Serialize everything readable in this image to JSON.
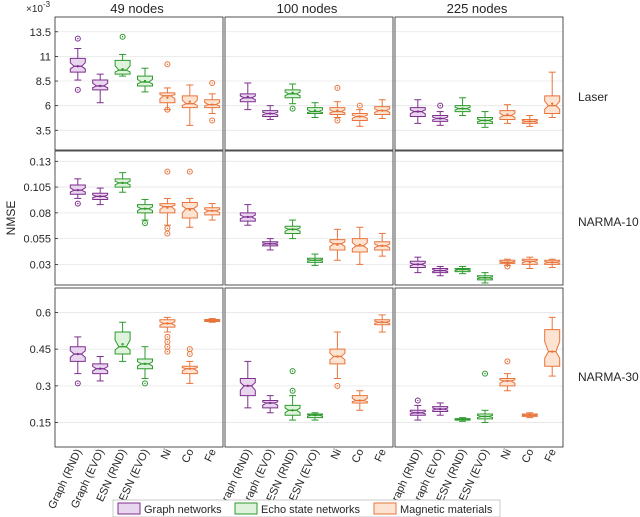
{
  "figure": {
    "ylabel": "NMSE",
    "exponent_base": "×10",
    "exponent_power": "-3"
  },
  "columns": [
    "49 nodes",
    "100 nodes",
    "225 nodes"
  ],
  "categories": [
    "Graph (RND)",
    "Graph (EVO)",
    "ESN (RND)",
    "ESN (EVO)",
    "Ni",
    "Co",
    "Fe"
  ],
  "category_groups": [
    "graph",
    "graph",
    "esn",
    "esn",
    "magnetic",
    "magnetic",
    "magnetic"
  ],
  "groups": {
    "graph": {
      "name": "Graph networks",
      "color": "#7e2f8e",
      "fill": "#e8d5ee"
    },
    "esn": {
      "name": "Echo state networks",
      "color": "#2e9a2e",
      "fill": "#dff3dc"
    },
    "magnetic": {
      "name": "Magnetic materials",
      "color": "#e8743b",
      "fill": "#fde3d2"
    }
  },
  "chart_data": [
    {
      "type": "boxplot",
      "task": "Laser",
      "ylim": [
        1.5,
        15
      ],
      "yticks": [
        3.5,
        6,
        8.5,
        11,
        13.5
      ],
      "ytick_labels": [
        "3.5",
        "6",
        "8.5",
        "11",
        "13.5"
      ],
      "columns": [
        [
          {
            "min": 8.6,
            "q1": 9.4,
            "median": 10.0,
            "q3": 10.8,
            "max": 11.8,
            "mean": 10.0,
            "outliers": [
              12.8,
              7.6
            ]
          },
          {
            "min": 6.3,
            "q1": 7.6,
            "median": 8.0,
            "q3": 8.6,
            "max": 9.2,
            "mean": 8.0,
            "outliers": []
          },
          {
            "min": 9.0,
            "q1": 9.2,
            "median": 9.6,
            "q3": 10.6,
            "max": 11.2,
            "mean": 9.7,
            "outliers": [
              13.0
            ]
          },
          {
            "min": 7.4,
            "q1": 8.0,
            "median": 8.4,
            "q3": 9.0,
            "max": 9.8,
            "mean": 8.5,
            "outliers": []
          },
          {
            "min": 5.6,
            "q1": 6.3,
            "median": 7.0,
            "q3": 7.3,
            "max": 7.8,
            "mean": 6.8,
            "outliers": [
              10.2,
              5.6
            ]
          },
          {
            "min": 4.0,
            "q1": 5.8,
            "median": 6.2,
            "q3": 7.0,
            "max": 8.1,
            "mean": 6.4,
            "outliers": []
          },
          {
            "min": 5.2,
            "q1": 5.8,
            "median": 6.1,
            "q3": 6.6,
            "max": 7.2,
            "mean": 6.1,
            "outliers": [
              8.3,
              4.5
            ]
          }
        ],
        [
          {
            "min": 5.6,
            "q1": 6.4,
            "median": 6.8,
            "q3": 7.2,
            "max": 8.3,
            "mean": 6.9,
            "outliers": []
          },
          {
            "min": 4.6,
            "q1": 4.9,
            "median": 5.2,
            "q3": 5.5,
            "max": 6.0,
            "mean": 5.2,
            "outliers": []
          },
          {
            "min": 6.2,
            "q1": 6.8,
            "median": 7.2,
            "q3": 7.6,
            "max": 8.2,
            "mean": 7.3,
            "outliers": [
              5.7
            ]
          },
          {
            "min": 4.8,
            "q1": 5.2,
            "median": 5.4,
            "q3": 5.8,
            "max": 6.3,
            "mean": 5.5,
            "outliers": []
          },
          {
            "min": 4.8,
            "q1": 5.1,
            "median": 5.4,
            "q3": 5.8,
            "max": 6.4,
            "mean": 5.5,
            "outliers": [
              7.8,
              4.5
            ]
          },
          {
            "min": 3.9,
            "q1": 4.5,
            "median": 4.9,
            "q3": 5.2,
            "max": 5.6,
            "mean": 4.9,
            "outliers": [
              6.0
            ]
          },
          {
            "min": 4.7,
            "q1": 5.1,
            "median": 5.5,
            "q3": 5.9,
            "max": 6.6,
            "mean": 5.5,
            "outliers": []
          }
        ],
        [
          {
            "min": 4.2,
            "q1": 4.9,
            "median": 5.4,
            "q3": 5.8,
            "max": 6.6,
            "mean": 5.4,
            "outliers": []
          },
          {
            "min": 4.0,
            "q1": 4.4,
            "median": 4.7,
            "q3": 5.0,
            "max": 5.4,
            "mean": 4.7,
            "outliers": [
              6.0
            ]
          },
          {
            "min": 5.0,
            "q1": 5.4,
            "median": 5.7,
            "q3": 6.0,
            "max": 6.8,
            "mean": 5.7,
            "outliers": []
          },
          {
            "min": 3.8,
            "q1": 4.2,
            "median": 4.5,
            "q3": 4.8,
            "max": 5.4,
            "mean": 4.5,
            "outliers": []
          },
          {
            "min": 4.2,
            "q1": 4.6,
            "median": 5.0,
            "q3": 5.5,
            "max": 6.1,
            "mean": 5.1,
            "outliers": []
          },
          {
            "min": 3.9,
            "q1": 4.2,
            "median": 4.4,
            "q3": 4.6,
            "max": 5.0,
            "mean": 4.4,
            "outliers": []
          },
          {
            "min": 4.8,
            "q1": 5.2,
            "median": 6.0,
            "q3": 7.0,
            "max": 9.4,
            "mean": 6.2,
            "outliers": []
          }
        ]
      ]
    },
    {
      "type": "boxplot",
      "task": "NARMA-10",
      "ylim": [
        0.01,
        0.14
      ],
      "yticks": [
        0.03,
        0.055,
        0.08,
        0.105,
        0.13
      ],
      "ytick_labels": [
        "0.03",
        "0.055",
        "0.08",
        "0.105",
        "0.13"
      ],
      "columns": [
        [
          {
            "min": 0.094,
            "q1": 0.098,
            "median": 0.102,
            "q3": 0.107,
            "max": 0.113,
            "mean": 0.102,
            "outliers": [
              0.089
            ]
          },
          {
            "min": 0.088,
            "q1": 0.093,
            "median": 0.096,
            "q3": 0.099,
            "max": 0.104,
            "mean": 0.096,
            "outliers": []
          },
          {
            "min": 0.1,
            "q1": 0.105,
            "median": 0.109,
            "q3": 0.113,
            "max": 0.119,
            "mean": 0.109,
            "outliers": []
          },
          {
            "min": 0.073,
            "q1": 0.08,
            "median": 0.084,
            "q3": 0.088,
            "max": 0.093,
            "mean": 0.084,
            "outliers": [
              0.07
            ]
          },
          {
            "min": 0.068,
            "q1": 0.08,
            "median": 0.086,
            "q3": 0.089,
            "max": 0.094,
            "mean": 0.085,
            "outliers": [
              0.12,
              0.065,
              0.06
            ]
          },
          {
            "min": 0.066,
            "q1": 0.075,
            "median": 0.084,
            "q3": 0.09,
            "max": 0.094,
            "mean": 0.083,
            "outliers": [
              0.12
            ]
          },
          {
            "min": 0.073,
            "q1": 0.078,
            "median": 0.082,
            "q3": 0.085,
            "max": 0.089,
            "mean": 0.082,
            "outliers": []
          }
        ],
        [
          {
            "min": 0.068,
            "q1": 0.072,
            "median": 0.076,
            "q3": 0.08,
            "max": 0.088,
            "mean": 0.076,
            "outliers": []
          },
          {
            "min": 0.044,
            "q1": 0.048,
            "median": 0.05,
            "q3": 0.052,
            "max": 0.055,
            "mean": 0.05,
            "outliers": []
          },
          {
            "min": 0.055,
            "q1": 0.06,
            "median": 0.064,
            "q3": 0.067,
            "max": 0.073,
            "mean": 0.064,
            "outliers": []
          },
          {
            "min": 0.029,
            "q1": 0.032,
            "median": 0.034,
            "q3": 0.036,
            "max": 0.04,
            "mean": 0.034,
            "outliers": []
          },
          {
            "min": 0.034,
            "q1": 0.044,
            "median": 0.05,
            "q3": 0.054,
            "max": 0.064,
            "mean": 0.049,
            "outliers": []
          },
          {
            "min": 0.03,
            "q1": 0.042,
            "median": 0.048,
            "q3": 0.055,
            "max": 0.066,
            "mean": 0.049,
            "outliers": []
          },
          {
            "min": 0.038,
            "q1": 0.044,
            "median": 0.048,
            "q3": 0.052,
            "max": 0.06,
            "mean": 0.048,
            "outliers": []
          }
        ],
        [
          {
            "min": 0.022,
            "q1": 0.027,
            "median": 0.03,
            "q3": 0.033,
            "max": 0.037,
            "mean": 0.03,
            "outliers": []
          },
          {
            "min": 0.019,
            "q1": 0.022,
            "median": 0.024,
            "q3": 0.026,
            "max": 0.028,
            "mean": 0.024,
            "outliers": []
          },
          {
            "min": 0.021,
            "q1": 0.023,
            "median": 0.025,
            "q3": 0.026,
            "max": 0.028,
            "mean": 0.025,
            "outliers": []
          },
          {
            "min": 0.012,
            "q1": 0.015,
            "median": 0.017,
            "q3": 0.019,
            "max": 0.022,
            "mean": 0.017,
            "outliers": []
          },
          {
            "min": 0.029,
            "q1": 0.031,
            "median": 0.032,
            "q3": 0.034,
            "max": 0.035,
            "mean": 0.032,
            "outliers": [
              0.028
            ]
          },
          {
            "min": 0.026,
            "q1": 0.03,
            "median": 0.033,
            "q3": 0.035,
            "max": 0.037,
            "mean": 0.032,
            "outliers": []
          },
          {
            "min": 0.027,
            "q1": 0.03,
            "median": 0.032,
            "q3": 0.034,
            "max": 0.035,
            "mean": 0.032,
            "outliers": []
          }
        ]
      ]
    },
    {
      "type": "boxplot",
      "task": "NARMA-30",
      "ylim": [
        0.05,
        0.7
      ],
      "yticks": [
        0.15,
        0.3,
        0.45,
        0.6
      ],
      "ytick_labels": [
        "0.15",
        "0.3",
        "0.45",
        "0.6"
      ],
      "columns": [
        [
          {
            "min": 0.35,
            "q1": 0.4,
            "median": 0.43,
            "q3": 0.46,
            "max": 0.5,
            "mean": 0.43,
            "outliers": [
              0.31
            ]
          },
          {
            "min": 0.32,
            "q1": 0.35,
            "median": 0.37,
            "q3": 0.39,
            "max": 0.42,
            "mean": 0.37,
            "outliers": []
          },
          {
            "min": 0.4,
            "q1": 0.43,
            "median": 0.46,
            "q3": 0.52,
            "max": 0.56,
            "mean": 0.47,
            "outliers": []
          },
          {
            "min": 0.33,
            "q1": 0.37,
            "median": 0.39,
            "q3": 0.41,
            "max": 0.46,
            "mean": 0.39,
            "outliers": [
              0.31
            ]
          },
          {
            "min": 0.52,
            "q1": 0.54,
            "median": 0.555,
            "q3": 0.57,
            "max": 0.58,
            "mean": 0.555,
            "outliers": [
              0.5,
              0.48,
              0.46,
              0.44
            ]
          },
          {
            "min": 0.31,
            "q1": 0.35,
            "median": 0.37,
            "q3": 0.38,
            "max": 0.4,
            "mean": 0.37,
            "outliers": [
              0.45,
              0.43
            ]
          },
          {
            "min": 0.56,
            "q1": 0.563,
            "median": 0.567,
            "q3": 0.571,
            "max": 0.575,
            "mean": 0.567,
            "outliers": []
          }
        ],
        [
          {
            "min": 0.21,
            "q1": 0.26,
            "median": 0.3,
            "q3": 0.33,
            "max": 0.4,
            "mean": 0.3,
            "outliers": []
          },
          {
            "min": 0.19,
            "q1": 0.21,
            "median": 0.23,
            "q3": 0.24,
            "max": 0.26,
            "mean": 0.23,
            "outliers": []
          },
          {
            "min": 0.16,
            "q1": 0.18,
            "median": 0.2,
            "q3": 0.22,
            "max": 0.26,
            "mean": 0.2,
            "outliers": [
              0.36,
              0.28
            ]
          },
          {
            "min": 0.16,
            "q1": 0.17,
            "median": 0.18,
            "q3": 0.185,
            "max": 0.19,
            "mean": 0.18,
            "outliers": []
          },
          {
            "min": 0.33,
            "q1": 0.39,
            "median": 0.42,
            "q3": 0.45,
            "max": 0.52,
            "mean": 0.42,
            "outliers": [
              0.3
            ]
          },
          {
            "min": 0.2,
            "q1": 0.23,
            "median": 0.24,
            "q3": 0.26,
            "max": 0.28,
            "mean": 0.24,
            "outliers": []
          },
          {
            "min": 0.52,
            "q1": 0.55,
            "median": 0.56,
            "q3": 0.57,
            "max": 0.59,
            "mean": 0.56,
            "outliers": []
          }
        ],
        [
          {
            "min": 0.16,
            "q1": 0.18,
            "median": 0.19,
            "q3": 0.2,
            "max": 0.22,
            "mean": 0.19,
            "outliers": [
              0.24
            ]
          },
          {
            "min": 0.18,
            "q1": 0.195,
            "median": 0.205,
            "q3": 0.215,
            "max": 0.23,
            "mean": 0.205,
            "outliers": []
          },
          {
            "min": 0.155,
            "q1": 0.16,
            "median": 0.163,
            "q3": 0.166,
            "max": 0.17,
            "mean": 0.163,
            "outliers": []
          },
          {
            "min": 0.15,
            "q1": 0.165,
            "median": 0.175,
            "q3": 0.185,
            "max": 0.2,
            "mean": 0.175,
            "outliers": [
              0.35
            ]
          },
          {
            "min": 0.28,
            "q1": 0.3,
            "median": 0.32,
            "q3": 0.33,
            "max": 0.35,
            "mean": 0.32,
            "outliers": [
              0.4
            ]
          },
          {
            "min": 0.17,
            "q1": 0.175,
            "median": 0.18,
            "q3": 0.185,
            "max": 0.19,
            "mean": 0.18,
            "outliers": []
          },
          {
            "min": 0.34,
            "q1": 0.38,
            "median": 0.44,
            "q3": 0.53,
            "max": 0.58,
            "mean": 0.44,
            "outliers": []
          }
        ]
      ]
    }
  ]
}
